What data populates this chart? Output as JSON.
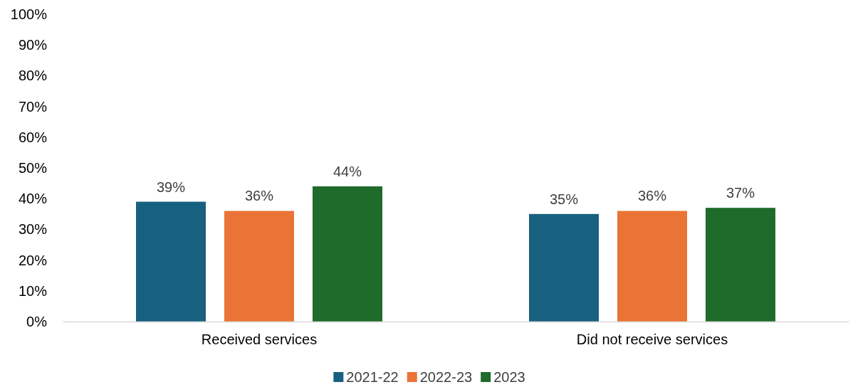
{
  "chart_data": {
    "type": "bar",
    "categories": [
      "Received services",
      "Did not receive services"
    ],
    "series": [
      {
        "name": "2021-22",
        "color": "#17607f",
        "values": [
          39,
          35
        ]
      },
      {
        "name": "2022-23",
        "color": "#e97436",
        "values": [
          36,
          36
        ]
      },
      {
        "name": "2023",
        "color": "#1e6b2a",
        "values": [
          44,
          37
        ]
      }
    ],
    "ylim": [
      0,
      100
    ],
    "yticks": [
      {
        "value": 0,
        "label": "0%"
      },
      {
        "value": 10,
        "label": "10%"
      },
      {
        "value": 20,
        "label": "20%"
      },
      {
        "value": 30,
        "label": "30%"
      },
      {
        "value": 40,
        "label": "40%"
      },
      {
        "value": 50,
        "label": "50%"
      },
      {
        "value": 60,
        "label": "60%"
      },
      {
        "value": 70,
        "label": "70%"
      },
      {
        "value": 80,
        "label": "80%"
      },
      {
        "value": 90,
        "label": "90%"
      },
      {
        "value": 100,
        "label": "100%"
      }
    ],
    "value_labels": [
      [
        "39%",
        "35%"
      ],
      [
        "36%",
        "36%"
      ],
      [
        "44%",
        "37%"
      ]
    ],
    "grid": false,
    "legend": "bottom"
  }
}
